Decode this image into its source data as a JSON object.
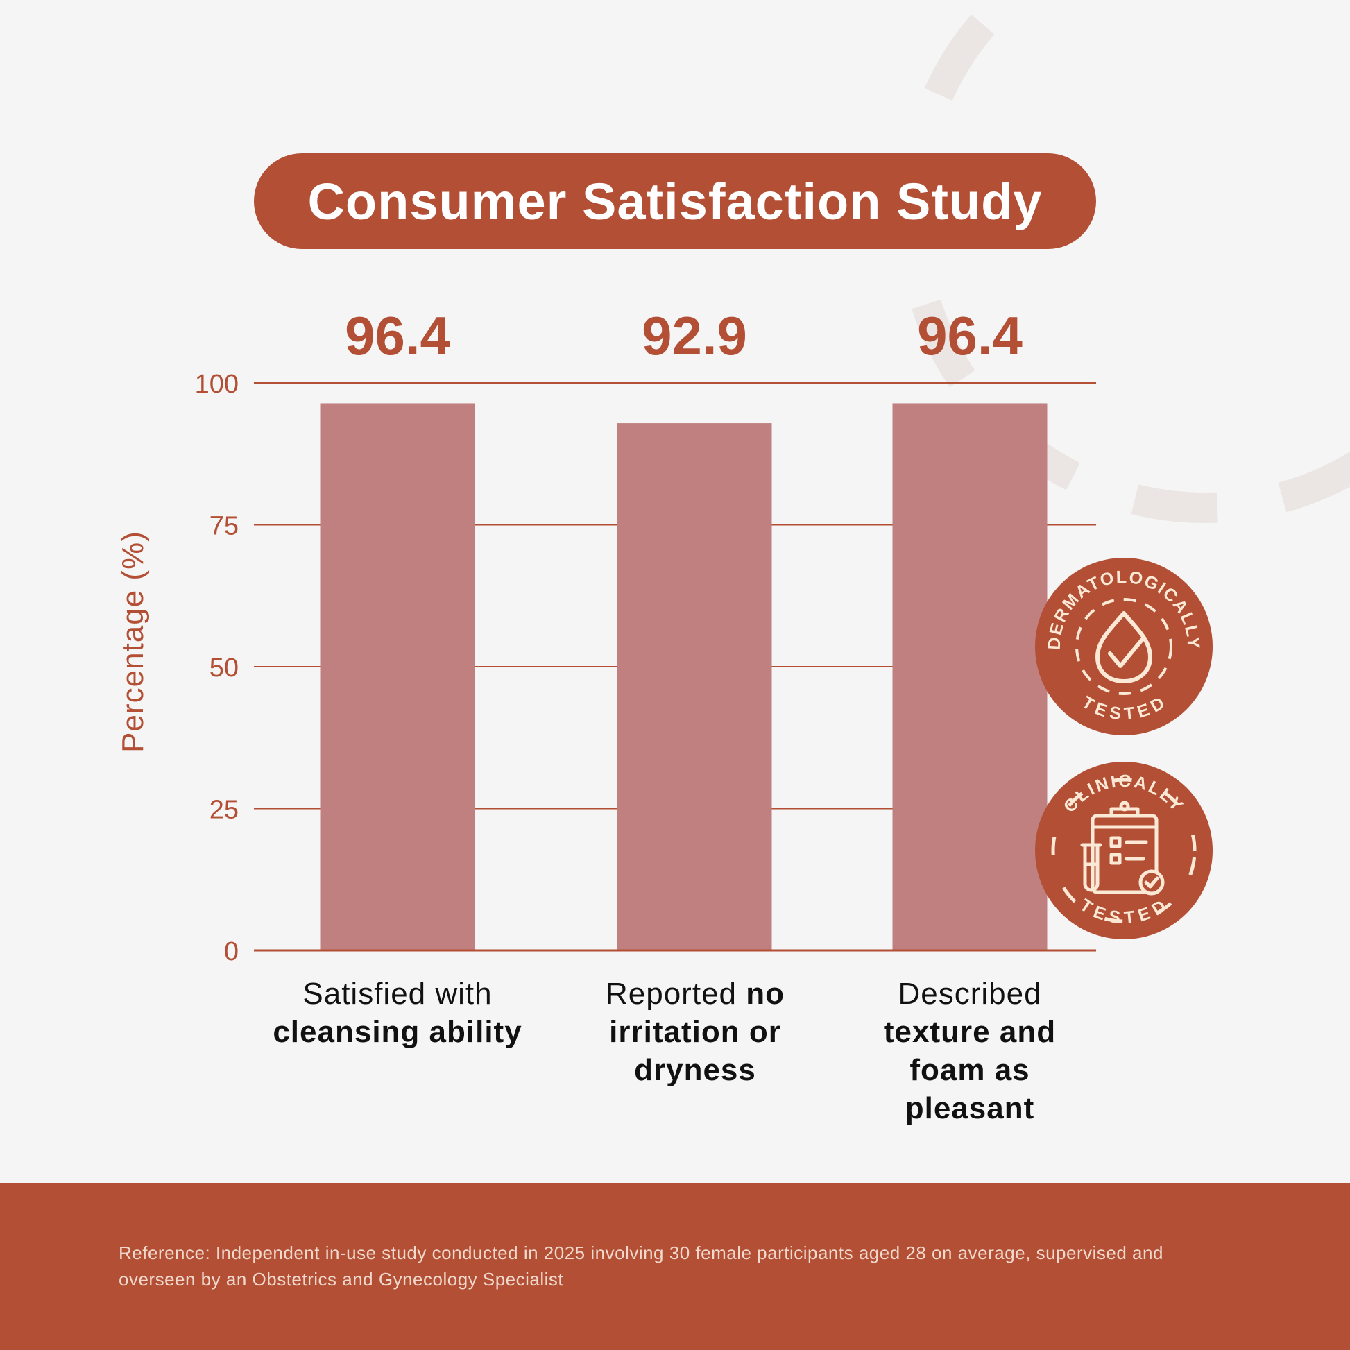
{
  "title": "Consumer Satisfaction Study",
  "colors": {
    "accent": "#b34f35",
    "bar": "#c08080",
    "background": "#f5f5f5",
    "badge_ink": "#fbe9d6"
  },
  "chart_data": {
    "type": "bar",
    "title": "Consumer Satisfaction Study",
    "ylabel": "Percentage (%)",
    "xlabel": "",
    "ylim": [
      0,
      100
    ],
    "yticks": [
      0,
      25,
      50,
      75,
      100
    ],
    "grid": true,
    "categories": [
      "Satisfied with cleansing ability",
      "Reported no irritation or dryness",
      "Described texture and foam as pleasant"
    ],
    "values": [
      96.4,
      92.9,
      96.4
    ],
    "value_labels": [
      "96.4",
      "92.9",
      "96.4"
    ]
  },
  "category_labels": [
    {
      "plain": "Satisfied with",
      "bold": "cleansing ability"
    },
    {
      "plain": "Reported",
      "bold_inline": "no",
      "bold": "irritation or dryness"
    },
    {
      "plain": "Described",
      "bold": "texture and foam as pleasant"
    }
  ],
  "badges": [
    {
      "top": "DERMATOLOGICALLY",
      "bottom": "TESTED",
      "icon": "drop-check-icon"
    },
    {
      "top": "CLINICALLY",
      "bottom": "TESTED",
      "icon": "clipboard-test-tube-icon"
    }
  ],
  "footer": {
    "reference": "Reference: Independent in-use study conducted in 2025 involving 30 female participants aged 28 on average, supervised and overseen by an Obstetrics and Gynecology Specialist"
  }
}
